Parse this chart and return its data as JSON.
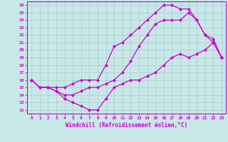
{
  "xlabel": "Windchill (Refroidissement éolien,°C)",
  "xlim": [
    -0.5,
    23.5
  ],
  "ylim": [
    11.5,
    26.5
  ],
  "xticks": [
    0,
    1,
    2,
    3,
    4,
    5,
    6,
    7,
    8,
    9,
    10,
    11,
    12,
    13,
    14,
    15,
    16,
    17,
    18,
    19,
    20,
    21,
    22,
    23
  ],
  "yticks": [
    12,
    13,
    14,
    15,
    16,
    17,
    18,
    19,
    20,
    21,
    22,
    23,
    24,
    25,
    26
  ],
  "bg_color": "#c8e8e8",
  "grid_color": "#aacccc",
  "line_color": "#cc00cc",
  "line1_x": [
    0,
    1,
    2,
    3,
    4,
    5,
    6,
    7,
    8,
    9,
    10,
    11,
    12,
    13,
    14,
    15,
    16,
    17,
    18,
    19,
    20,
    21,
    22,
    23
  ],
  "line1_y": [
    16,
    15,
    15,
    14.5,
    13.5,
    13,
    12.5,
    12,
    12,
    13.5,
    15,
    15.5,
    16,
    16,
    16.5,
    17,
    18,
    19,
    19.5,
    19,
    19.5,
    20,
    21,
    19
  ],
  "line2_x": [
    0,
    1,
    2,
    3,
    4,
    5,
    6,
    7,
    8,
    9,
    10,
    11,
    12,
    13,
    14,
    15,
    16,
    17,
    18,
    19,
    20,
    21,
    22,
    23
  ],
  "line2_y": [
    16,
    15,
    15,
    15,
    15,
    15.5,
    16,
    16,
    16,
    18,
    20.5,
    21,
    22,
    23,
    24,
    25,
    26,
    26,
    25.5,
    25.5,
    24,
    22,
    21.5,
    19
  ],
  "line3_x": [
    0,
    1,
    2,
    3,
    4,
    5,
    6,
    7,
    8,
    9,
    10,
    11,
    12,
    13,
    14,
    15,
    16,
    17,
    18,
    19,
    20,
    21,
    22,
    23
  ],
  "line3_y": [
    16,
    15,
    15,
    14.5,
    14,
    14,
    14.5,
    15,
    15,
    15.5,
    16,
    17,
    18.5,
    20.5,
    22,
    23.5,
    24,
    24,
    24,
    25,
    24,
    22,
    21,
    19
  ]
}
